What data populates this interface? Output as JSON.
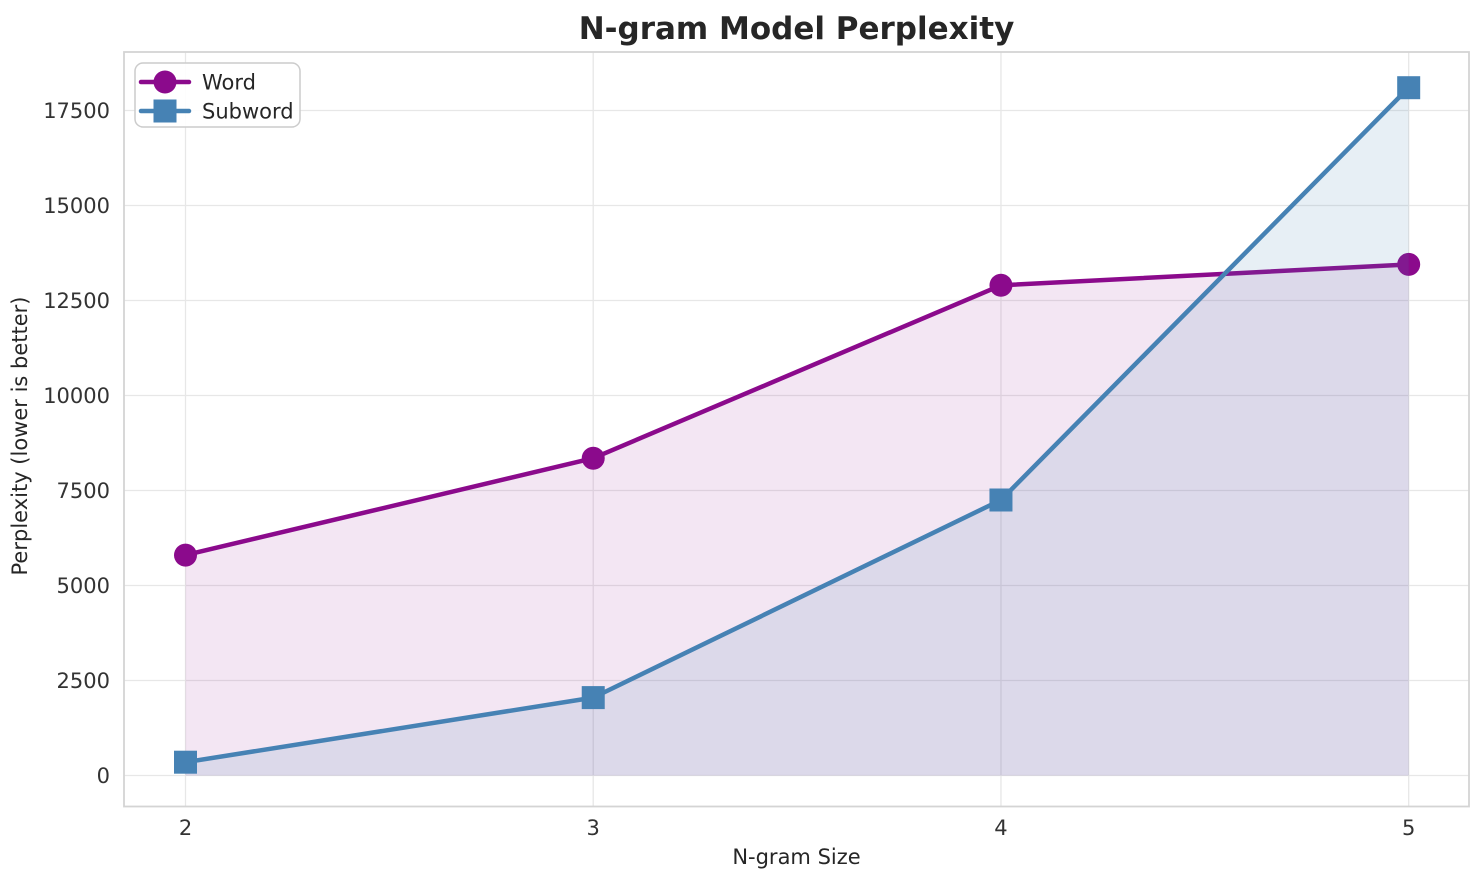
{
  "chart_data": {
    "type": "line",
    "title": "N-gram Model Perplexity",
    "xlabel": "N-gram Size",
    "ylabel": "Perplexity (lower is better)",
    "x": [
      2,
      3,
      4,
      5
    ],
    "xtick_labels": [
      "2",
      "3",
      "4",
      "5"
    ],
    "yticks": [
      0,
      2500,
      5000,
      7500,
      10000,
      12500,
      15000,
      17500
    ],
    "ytick_labels": [
      "0",
      "2500",
      "5000",
      "7500",
      "10000",
      "12500",
      "15000",
      "17500"
    ],
    "xlim": [
      1.85,
      5.15
    ],
    "ylim": [
      -820,
      19030
    ],
    "grid": true,
    "fill_to_zero": true,
    "legend_position": "upper-left",
    "series": [
      {
        "name": "Word",
        "marker": "circle",
        "color": "#8B0A8C",
        "fill_color": "rgba(139, 10, 140, 0.10)",
        "values": [
          5800,
          8350,
          12900,
          13450
        ]
      },
      {
        "name": "Subword",
        "marker": "square",
        "color": "#4682B4",
        "fill_color": "rgba(70, 130, 180, 0.13)",
        "values": [
          350,
          2050,
          7250,
          18100
        ]
      }
    ],
    "style": {
      "grid_color": "#e7e7e7",
      "spine_color": "#d4d4d4",
      "text_color": "#262626",
      "legend_border_color": "#cccccc",
      "background_color": "#ffffff"
    }
  }
}
